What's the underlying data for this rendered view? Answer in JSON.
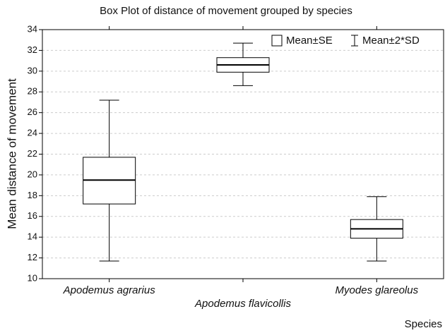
{
  "chart_data": {
    "type": "box",
    "title": "Box Plot of distance of movement grouped by species",
    "x_label": "Species",
    "y_label": "Mean distance of movement",
    "categories": [
      "Apodemus agrarius",
      "Apodemus flavicollis",
      "Myodes glareolus"
    ],
    "mean": [
      19.5,
      30.6,
      14.8
    ],
    "box_low": [
      17.2,
      29.9,
      13.9
    ],
    "box_high": [
      21.7,
      31.3,
      15.7
    ],
    "whisker_low": [
      11.7,
      28.6,
      11.7
    ],
    "whisker_high": [
      27.2,
      32.7,
      17.9
    ],
    "box_legend": "Mean±SE",
    "whisker_legend": "Mean±2*SD",
    "ylim": [
      10,
      34
    ],
    "yticks": [
      10,
      12,
      14,
      16,
      18,
      20,
      22,
      24,
      26,
      28,
      30,
      32,
      34
    ],
    "grid": true
  }
}
